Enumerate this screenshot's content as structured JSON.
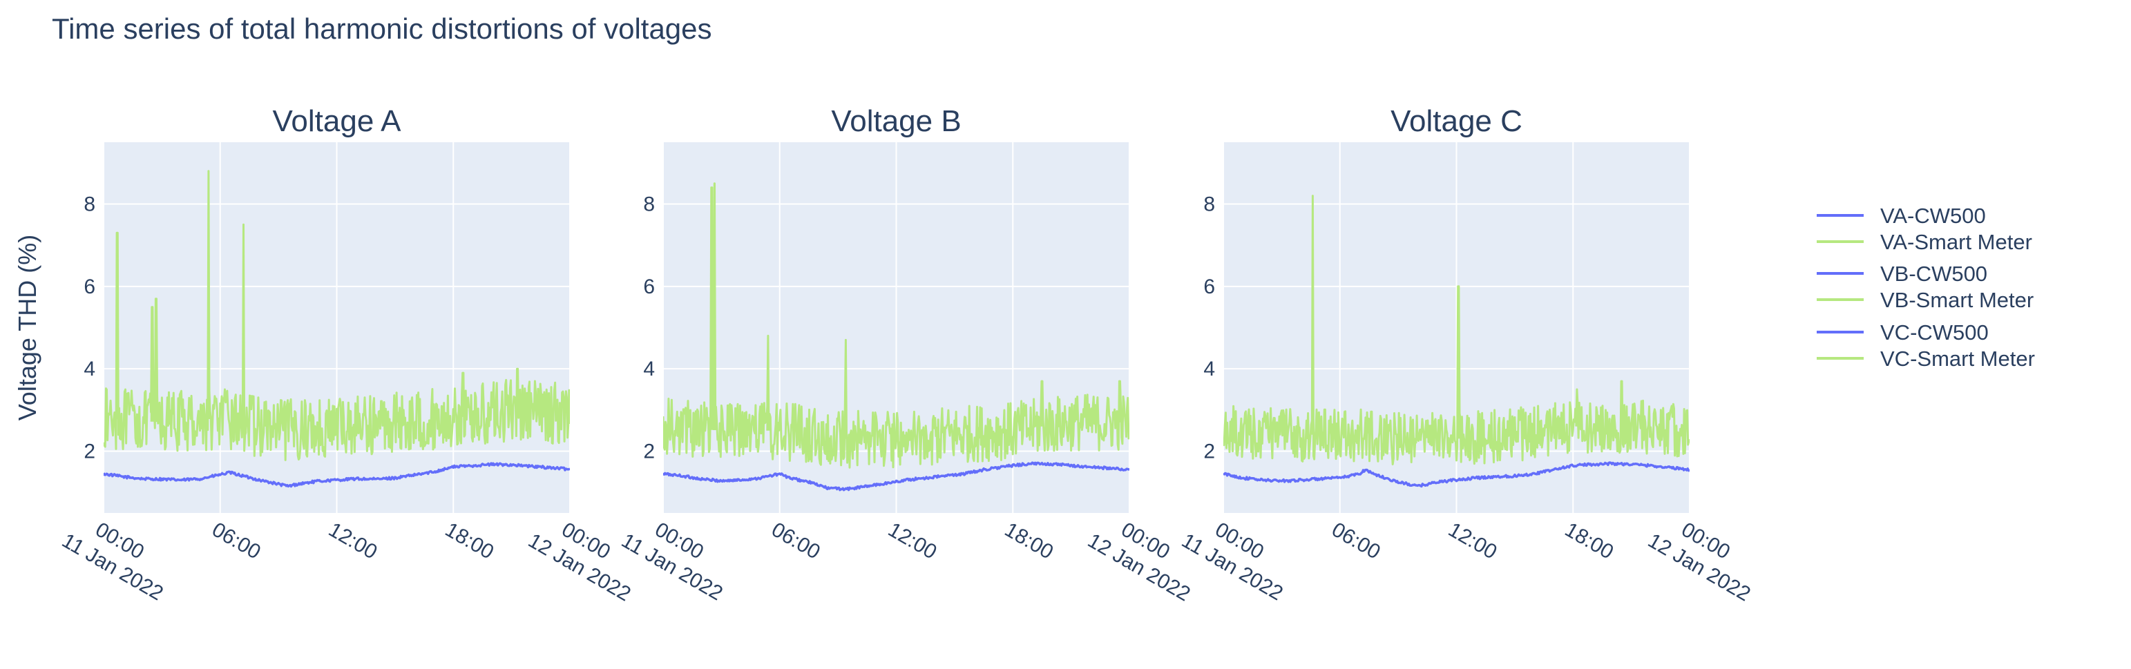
{
  "title": "Time series of total harmonic distortions of voltages",
  "colors": {
    "cw500": "#636efa",
    "smart_meter": "#b6e880",
    "plot_bg": "#e5ecf6",
    "grid": "#ffffff",
    "text": "#2a3f5f"
  },
  "legend": {
    "placement": "right",
    "items": [
      {
        "name": "VA-CW500",
        "series": "cw500"
      },
      {
        "name": "VA-Smart Meter",
        "series": "smart_meter"
      },
      {
        "name": "VB-CW500",
        "series": "cw500"
      },
      {
        "name": "VB-Smart Meter",
        "series": "smart_meter"
      },
      {
        "name": "VC-CW500",
        "series": "cw500"
      },
      {
        "name": "VC-Smart Meter",
        "series": "smart_meter"
      }
    ]
  },
  "chart_data": [
    {
      "type": "line",
      "title": "Voltage A",
      "ylabel": "Voltage THD (%)",
      "xlabel": "",
      "xlim_hours": [
        0,
        24
      ],
      "ylim": [
        0.5,
        9.5
      ],
      "yticks": [
        2,
        4,
        6,
        8
      ],
      "xticks": [
        {
          "h": 0,
          "label": [
            "00:00",
            "11 Jan 2022"
          ]
        },
        {
          "h": 6,
          "label": [
            "06:00"
          ]
        },
        {
          "h": 12,
          "label": [
            "12:00"
          ]
        },
        {
          "h": 18,
          "label": [
            "18:00"
          ]
        },
        {
          "h": 24,
          "label": [
            "00:00",
            "12 Jan 2022"
          ]
        }
      ],
      "grid": true,
      "series": [
        {
          "name": "VA-CW500",
          "key": "cw500",
          "points": [
            [
              0,
              1.45
            ],
            [
              1,
              1.38
            ],
            [
              2,
              1.33
            ],
            [
              3,
              1.32
            ],
            [
              4,
              1.3
            ],
            [
              5,
              1.33
            ],
            [
              5.5,
              1.38
            ],
            [
              6.5,
              1.48
            ],
            [
              7,
              1.42
            ],
            [
              8,
              1.3
            ],
            [
              9,
              1.2
            ],
            [
              9.5,
              1.15
            ],
            [
              10,
              1.2
            ],
            [
              11,
              1.27
            ],
            [
              12,
              1.3
            ],
            [
              13,
              1.33
            ],
            [
              14,
              1.32
            ],
            [
              15,
              1.35
            ],
            [
              16,
              1.42
            ],
            [
              17,
              1.5
            ],
            [
              18,
              1.62
            ],
            [
              19,
              1.65
            ],
            [
              20,
              1.68
            ],
            [
              21,
              1.67
            ],
            [
              22,
              1.63
            ],
            [
              23,
              1.6
            ],
            [
              24,
              1.56
            ]
          ]
        },
        {
          "name": "VA-Smart Meter",
          "key": "smart_meter",
          "base": [
            [
              0,
              2.8
            ],
            [
              3,
              2.7
            ],
            [
              6,
              2.8
            ],
            [
              9,
              2.5
            ],
            [
              12,
              2.6
            ],
            [
              15,
              2.7
            ],
            [
              18,
              2.8
            ],
            [
              21,
              3.0
            ],
            [
              24,
              2.9
            ]
          ],
          "amp": 0.75,
          "spikes": [
            [
              0.7,
              7.3
            ],
            [
              2.5,
              5.5
            ],
            [
              2.7,
              5.7
            ],
            [
              5.4,
              8.8
            ],
            [
              7.2,
              7.5
            ],
            [
              18.5,
              3.9
            ],
            [
              21.3,
              4.0
            ]
          ]
        }
      ]
    },
    {
      "type": "line",
      "title": "Voltage B",
      "ylabel": "",
      "xlabel": "",
      "xlim_hours": [
        0,
        24
      ],
      "ylim": [
        0.5,
        9.5
      ],
      "yticks": [
        2,
        4,
        6,
        8
      ],
      "xticks": [
        {
          "h": 0,
          "label": [
            "00:00",
            "11 Jan 2022"
          ]
        },
        {
          "h": 6,
          "label": [
            "06:00"
          ]
        },
        {
          "h": 12,
          "label": [
            "12:00"
          ]
        },
        {
          "h": 18,
          "label": [
            "18:00"
          ]
        },
        {
          "h": 24,
          "label": [
            "00:00",
            "12 Jan 2022"
          ]
        }
      ],
      "grid": true,
      "series": [
        {
          "name": "VB-CW500",
          "key": "cw500",
          "points": [
            [
              0,
              1.45
            ],
            [
              1,
              1.4
            ],
            [
              2,
              1.32
            ],
            [
              3,
              1.28
            ],
            [
              4,
              1.3
            ],
            [
              5,
              1.35
            ],
            [
              6,
              1.45
            ],
            [
              6.5,
              1.35
            ],
            [
              7.5,
              1.25
            ],
            [
              8.5,
              1.1
            ],
            [
              9.5,
              1.08
            ],
            [
              10.5,
              1.15
            ],
            [
              11.5,
              1.22
            ],
            [
              12.5,
              1.3
            ],
            [
              13.5,
              1.35
            ],
            [
              14.5,
              1.4
            ],
            [
              15.5,
              1.45
            ],
            [
              16.5,
              1.55
            ],
            [
              17.5,
              1.62
            ],
            [
              18.5,
              1.68
            ],
            [
              19.5,
              1.7
            ],
            [
              20.5,
              1.67
            ],
            [
              21.5,
              1.63
            ],
            [
              22.5,
              1.6
            ],
            [
              24,
              1.55
            ]
          ]
        },
        {
          "name": "VB-Smart Meter",
          "key": "smart_meter",
          "base": [
            [
              0,
              2.6
            ],
            [
              3,
              2.5
            ],
            [
              6,
              2.5
            ],
            [
              9,
              2.3
            ],
            [
              12,
              2.3
            ],
            [
              15,
              2.4
            ],
            [
              18,
              2.5
            ],
            [
              21,
              2.7
            ],
            [
              24,
              2.7
            ]
          ],
          "amp": 0.7,
          "spikes": [
            [
              2.5,
              8.4
            ],
            [
              2.65,
              8.5
            ],
            [
              5.4,
              4.8
            ],
            [
              9.4,
              4.7
            ],
            [
              19.5,
              3.7
            ],
            [
              23.5,
              3.7
            ]
          ]
        }
      ]
    },
    {
      "type": "line",
      "title": "Voltage C",
      "ylabel": "",
      "xlabel": "",
      "xlim_hours": [
        0,
        24
      ],
      "ylim": [
        0.5,
        9.5
      ],
      "yticks": [
        2,
        4,
        6,
        8
      ],
      "xticks": [
        {
          "h": 0,
          "label": [
            "00:00",
            "11 Jan 2022"
          ]
        },
        {
          "h": 6,
          "label": [
            "06:00"
          ]
        },
        {
          "h": 12,
          "label": [
            "12:00"
          ]
        },
        {
          "h": 18,
          "label": [
            "18:00"
          ]
        },
        {
          "h": 24,
          "label": [
            "00:00",
            "12 Jan 2022"
          ]
        }
      ],
      "grid": true,
      "series": [
        {
          "name": "VC-CW500",
          "key": "cw500",
          "points": [
            [
              0,
              1.45
            ],
            [
              1,
              1.35
            ],
            [
              2,
              1.3
            ],
            [
              3,
              1.28
            ],
            [
              4,
              1.3
            ],
            [
              5,
              1.33
            ],
            [
              6,
              1.35
            ],
            [
              7,
              1.45
            ],
            [
              7.3,
              1.55
            ],
            [
              8,
              1.4
            ],
            [
              9,
              1.25
            ],
            [
              10,
              1.15
            ],
            [
              11,
              1.25
            ],
            [
              12,
              1.3
            ],
            [
              13,
              1.35
            ],
            [
              14,
              1.38
            ],
            [
              15,
              1.4
            ],
            [
              16,
              1.45
            ],
            [
              17,
              1.55
            ],
            [
              18,
              1.65
            ],
            [
              19,
              1.68
            ],
            [
              20,
              1.7
            ],
            [
              21,
              1.68
            ],
            [
              22,
              1.65
            ],
            [
              23,
              1.6
            ],
            [
              24,
              1.55
            ]
          ]
        },
        {
          "name": "VC-Smart Meter",
          "key": "smart_meter",
          "base": [
            [
              0,
              2.5
            ],
            [
              3,
              2.4
            ],
            [
              6,
              2.4
            ],
            [
              9,
              2.3
            ],
            [
              12,
              2.3
            ],
            [
              15,
              2.4
            ],
            [
              18,
              2.6
            ],
            [
              21,
              2.6
            ],
            [
              24,
              2.5
            ]
          ],
          "amp": 0.65,
          "spikes": [
            [
              4.6,
              8.2
            ],
            [
              12.1,
              6.0
            ],
            [
              18.2,
              3.5
            ],
            [
              20.5,
              3.7
            ]
          ]
        }
      ]
    }
  ]
}
